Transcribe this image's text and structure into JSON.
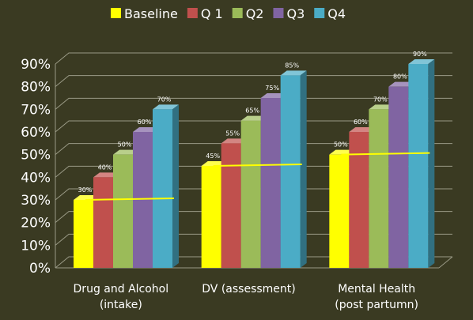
{
  "chart_data": {
    "type": "bar",
    "title": "",
    "xlabel": "",
    "ylabel": "",
    "ylim": [
      0,
      90
    ],
    "yticks": [
      "0%",
      "10%",
      "20%",
      "30%",
      "40%",
      "50%",
      "60%",
      "70%",
      "80%",
      "90%"
    ],
    "grid": true,
    "legend": "top",
    "categories": [
      [
        "Drug and Alcohol",
        "(intake)"
      ],
      [
        "DV (assessment)"
      ],
      [
        "Mental Health",
        "(post partumn)"
      ]
    ],
    "series": [
      {
        "name": "Baseline",
        "color": "#ffff00",
        "values": [
          30,
          45,
          50
        ],
        "labels": [
          "30%",
          "45%",
          "50%"
        ]
      },
      {
        "name": "Q 1",
        "color": "#c0504d",
        "values": [
          40,
          55,
          60
        ],
        "labels": [
          "40%",
          "55%",
          "60%"
        ]
      },
      {
        "name": "Q2",
        "color": "#9bbb59",
        "values": [
          50,
          65,
          70
        ],
        "labels": [
          "50%",
          "65%",
          "70%"
        ]
      },
      {
        "name": "Q3",
        "color": "#8064a2",
        "values": [
          60,
          75,
          80
        ],
        "labels": [
          "60%",
          "75%",
          "80%"
        ]
      },
      {
        "name": "Q4",
        "color": "#4bacc6",
        "values": [
          70,
          85,
          90
        ],
        "labels": [
          "70%",
          "85%",
          "90%"
        ]
      }
    ],
    "baseline_line": {
      "color": "#ffff00",
      "values": [
        30,
        45,
        50
      ]
    }
  }
}
